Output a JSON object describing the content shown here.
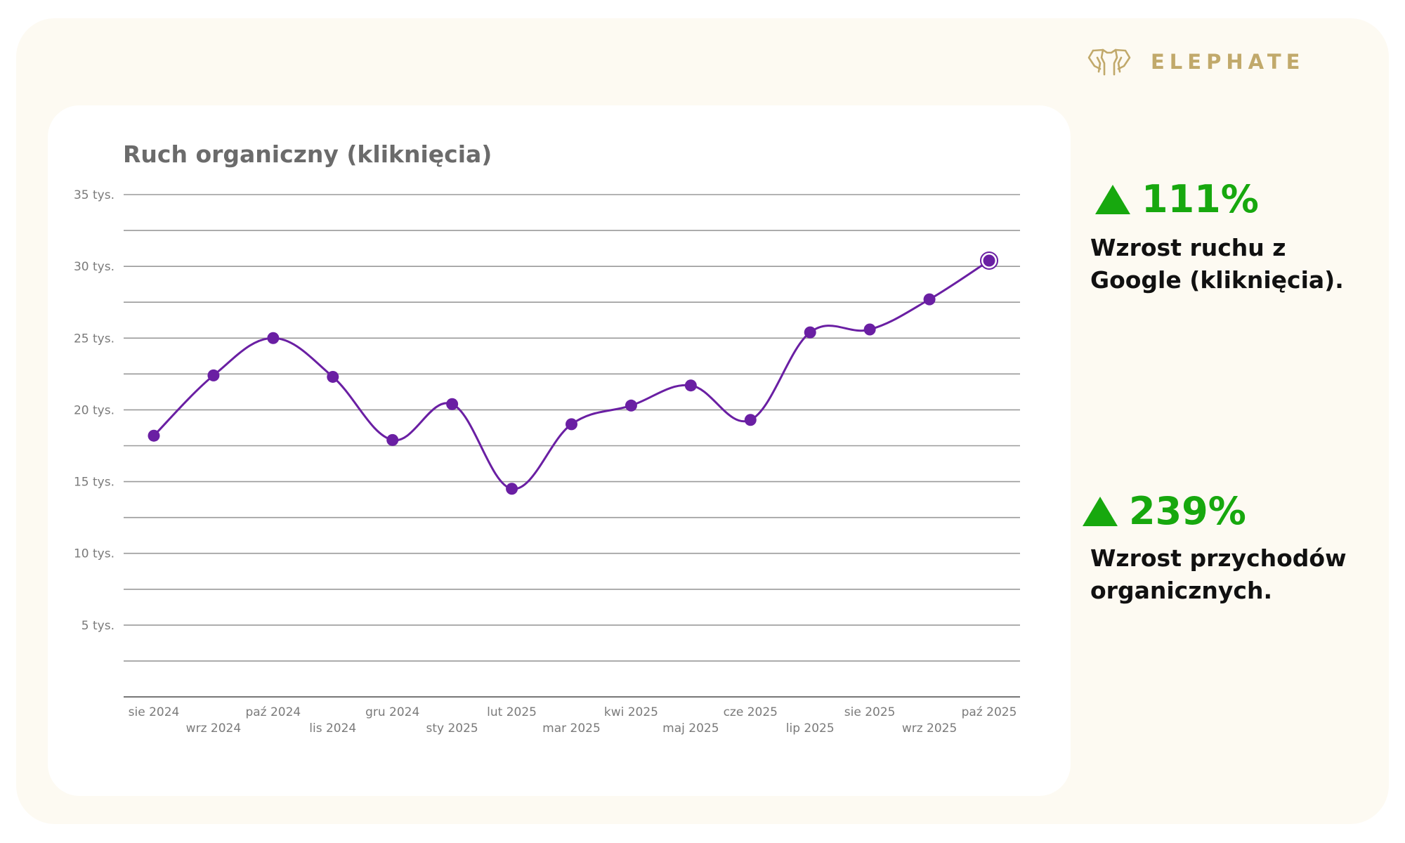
{
  "brand": {
    "name": "ELEPHATE",
    "color": "#c1a96b"
  },
  "stats": [
    {
      "value": "111%",
      "line1": "Wzrost ruchu z",
      "line2": "Google (kliknięcia).",
      "icon": "triangle-up-icon"
    },
    {
      "value": "239%",
      "line1": "Wzrost przychodów",
      "line2": "organicznych.",
      "icon": "triangle-up-icon"
    }
  ],
  "colors": {
    "line": "#6a1fa3",
    "positive": "#17a80e"
  },
  "chart_data": {
    "type": "line",
    "title": "Ruch organiczny (kliknięcia)",
    "xlabel": "",
    "ylabel": "",
    "ylim": [
      0,
      35000
    ],
    "yticks": [
      5000,
      10000,
      15000,
      20000,
      25000,
      30000,
      35000
    ],
    "ytick_labels": [
      "5 tys.",
      "10 tys.",
      "15 tys.",
      "20 tys.",
      "25 tys.",
      "30 tys.",
      "35 tys."
    ],
    "grid": true,
    "categories": [
      "sie 2024",
      "wrz 2024",
      "paź 2024",
      "lis 2024",
      "gru 2024",
      "sty 2025",
      "lut 2025",
      "mar 2025",
      "kwi 2025",
      "maj 2025",
      "cze 2025",
      "lip 2025",
      "sie 2025",
      "wrz 2025",
      "paź 2025"
    ],
    "series": [
      {
        "name": "Kliknięcia",
        "values": [
          18200,
          22400,
          25000,
          22300,
          17900,
          20400,
          14500,
          19000,
          20300,
          21700,
          19300,
          25400,
          25600,
          27700,
          30400
        ]
      }
    ]
  }
}
